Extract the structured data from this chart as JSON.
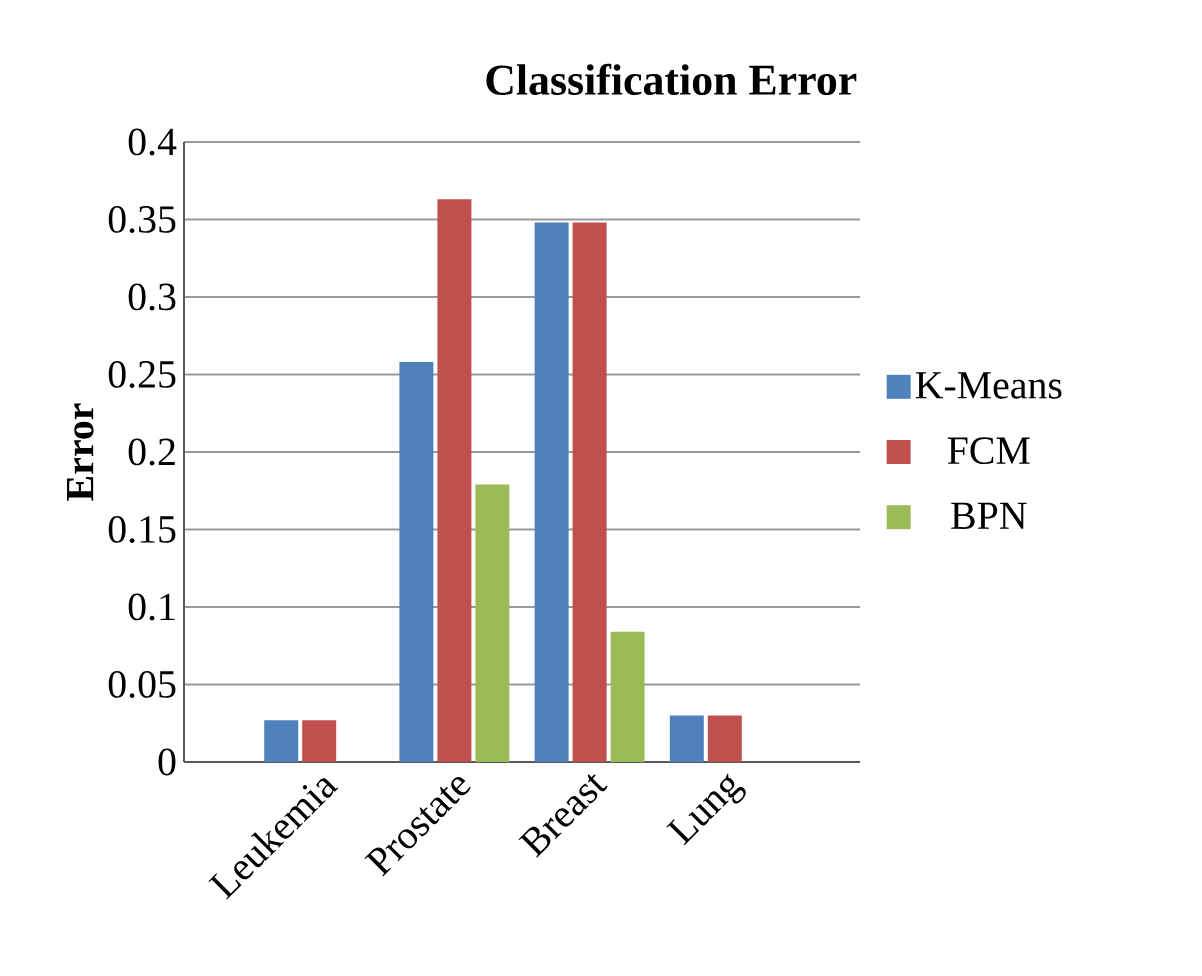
{
  "chart_data": {
    "type": "bar",
    "title": "Classification Error",
    "ylabel": "Error",
    "categories": [
      "Leukemia",
      "Prostate",
      "Breast",
      "Lung"
    ],
    "series": [
      {
        "name": "K-Means",
        "color": "#4f81bd",
        "values": [
          0.027,
          0.258,
          0.348,
          0.03
        ]
      },
      {
        "name": "FCM",
        "color": "#c0504d",
        "values": [
          0.027,
          0.363,
          0.348,
          0.03
        ]
      },
      {
        "name": "BPN",
        "color": "#9bbb59",
        "values": [
          0,
          0.179,
          0.084,
          0
        ]
      }
    ],
    "ylim": [
      0,
      0.4
    ],
    "yticks": [
      0,
      0.05,
      0.1,
      0.15,
      0.2,
      0.25,
      0.3,
      0.35,
      0.4
    ],
    "grid": "y",
    "legend": "right"
  }
}
